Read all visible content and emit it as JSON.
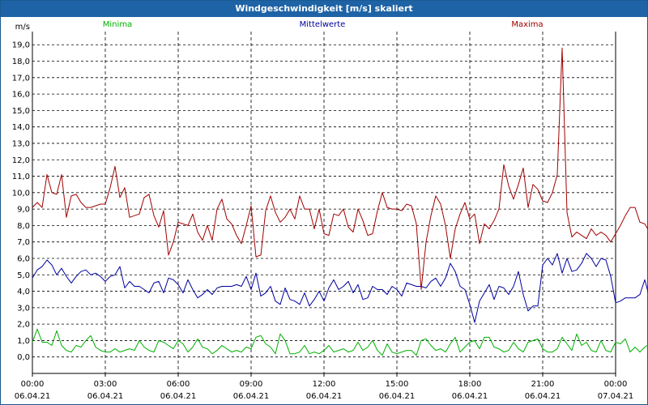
{
  "window": {
    "title": "Windgeschwindigkeit [m/s] skaliert"
  },
  "colors": {
    "titlebar": "#1e63a6",
    "min": "#00b000",
    "mean": "#0000a0",
    "max": "#a00000",
    "grid": "#000000"
  },
  "chart_data": {
    "type": "line",
    "title": "Windgeschwindigkeit [m/s] skaliert",
    "ylabel": "m/s",
    "xlabel": "",
    "ylim": [
      -1.0,
      19.8
    ],
    "yticks": [
      0.0,
      1.0,
      2.0,
      3.0,
      4.0,
      5.0,
      6.0,
      7.0,
      8.0,
      9.0,
      10.0,
      11.0,
      12.0,
      13.0,
      14.0,
      15.0,
      16.0,
      17.0,
      18.0,
      19.0
    ],
    "ytick_labels": [
      "0,0",
      "1,0",
      "2,0",
      "3,0",
      "4,0",
      "5,0",
      "6,0",
      "7,0",
      "8,0",
      "9,0",
      "10,0",
      "11,0",
      "12,0",
      "13,0",
      "14,0",
      "15,0",
      "16,0",
      "17,0",
      "18,0",
      "19,0"
    ],
    "xlim_hours": [
      0,
      24
    ],
    "xticks_hours": [
      0,
      3,
      6,
      9,
      12,
      15,
      18,
      21,
      24
    ],
    "xtick_labels": [
      [
        "00:00",
        "06.04.21"
      ],
      [
        "03:00",
        "06.04.21"
      ],
      [
        "06:00",
        "06.04.21"
      ],
      [
        "09:00",
        "06.04.21"
      ],
      [
        "12:00",
        "06.04.21"
      ],
      [
        "15:00",
        "06.04.21"
      ],
      [
        "18:00",
        "06.04.21"
      ],
      [
        "21:00",
        "06.04.21"
      ],
      [
        "00:00",
        "07.04.21"
      ]
    ],
    "grid": true,
    "legend_position": "top",
    "x_step_hours": 0.2,
    "series": [
      {
        "name": "Minima",
        "color": "#00b000",
        "values": [
          0.9,
          1.7,
          0.9,
          0.9,
          0.7,
          1.6,
          0.7,
          0.4,
          0.3,
          0.7,
          0.6,
          1.0,
          1.3,
          0.6,
          0.4,
          0.3,
          0.3,
          0.5,
          0.3,
          0.4,
          0.5,
          0.4,
          1.0,
          0.6,
          0.4,
          0.3,
          1.0,
          0.9,
          0.7,
          0.5,
          1.0,
          0.8,
          0.3,
          0.6,
          1.1,
          0.6,
          0.5,
          0.2,
          0.4,
          0.7,
          0.5,
          0.3,
          0.4,
          0.3,
          0.6,
          0.5,
          1.2,
          1.3,
          0.8,
          0.6,
          0.2,
          1.4,
          1.0,
          0.2,
          0.2,
          0.3,
          0.7,
          0.2,
          0.3,
          0.2,
          0.4,
          0.7,
          0.3,
          0.4,
          0.5,
          0.3,
          0.4,
          0.9,
          0.4,
          0.6,
          1.0,
          0.4,
          0.1,
          0.8,
          0.3,
          0.2,
          0.3,
          0.4,
          0.4,
          0.1,
          1.0,
          1.1,
          0.7,
          0.4,
          0.5,
          0.3,
          0.8,
          1.2,
          0.3,
          0.6,
          0.9,
          1.0,
          0.5,
          1.2,
          1.2,
          0.6,
          0.5,
          0.3,
          0.4,
          0.9,
          0.5,
          0.3,
          0.9,
          1.0,
          1.1,
          0.5,
          0.3,
          0.3,
          0.5,
          1.2,
          0.8,
          0.4,
          1.4,
          0.7,
          0.9,
          0.4,
          0.3,
          1.0,
          0.4,
          0.3,
          0.9,
          0.8,
          1.1,
          0.3,
          0.6,
          0.3,
          0.6,
          0.8,
          0.4,
          0.3,
          0.2,
          0.6,
          0.5,
          0.3,
          0.6,
          0.5,
          0.3,
          1.0,
          0.8,
          0.4,
          0.5,
          0.2,
          0.5,
          0.2,
          0.4,
          0.4,
          0.3,
          0.5,
          0.4,
          0.3,
          1.0,
          1.5,
          0.6,
          0.2,
          0.7,
          1.4,
          0.8,
          0.3,
          0.4,
          1.2,
          1.0,
          1.0,
          0.5,
          0.6,
          0.4,
          1.0,
          0.9,
          0.6,
          1.2,
          1.3,
          0.8,
          0.4,
          0.2,
          0.3,
          0.8,
          0.8,
          1.0,
          0.5,
          0.5
        ]
      },
      {
        "name": "Mittelwerte",
        "color": "#0000a0",
        "values": [
          4.8,
          5.3,
          5.5,
          5.9,
          5.6,
          5.0,
          5.4,
          4.9,
          4.5,
          4.9,
          5.2,
          5.3,
          5.0,
          5.1,
          4.9,
          4.6,
          4.9,
          5.0,
          5.5,
          4.2,
          4.6,
          4.3,
          4.3,
          4.1,
          3.9,
          4.5,
          4.6,
          3.9,
          4.8,
          4.7,
          4.4,
          3.9,
          4.7,
          4.1,
          3.6,
          3.8,
          4.1,
          3.8,
          4.2,
          4.3,
          4.3,
          4.3,
          4.4,
          4.3,
          4.9,
          4.1,
          5.1,
          3.7,
          3.9,
          4.3,
          3.4,
          3.2,
          4.2,
          3.5,
          3.4,
          3.2,
          3.9,
          3.1,
          3.5,
          4.0,
          3.4,
          4.2,
          4.7,
          4.1,
          4.3,
          4.6,
          3.9,
          4.4,
          3.5,
          3.6,
          4.3,
          4.1,
          4.1,
          3.8,
          4.3,
          4.1,
          3.7,
          4.5,
          4.4,
          4.3,
          4.3,
          4.2,
          4.6,
          4.8,
          4.3,
          4.8,
          5.7,
          5.2,
          4.3,
          4.1,
          3.2,
          2.1,
          3.4,
          3.9,
          4.4,
          3.5,
          4.3,
          4.2,
          3.8,
          4.3,
          5.2,
          3.8,
          2.8,
          3.1,
          3.1,
          5.6,
          6.0,
          5.6,
          6.3,
          5.1,
          6.0,
          5.2,
          5.3,
          5.7,
          6.3,
          6.0,
          5.5,
          6.0,
          5.9,
          4.9,
          3.3,
          3.4,
          3.6,
          3.6,
          3.6,
          3.8,
          4.7,
          3.6,
          4.8,
          4.8,
          3.9,
          3.9,
          4.3,
          3.9,
          3.4,
          3.6,
          3.4,
          3.6,
          4.0,
          2.9,
          2.9,
          2.9,
          3.7,
          3.8,
          3.7,
          3.6,
          4.1,
          4.6,
          4.1,
          3.8,
          4.6,
          3.8,
          3.3,
          3.6,
          3.6,
          3.2,
          3.8,
          3.8,
          4.3,
          4.7,
          4.8,
          4.3,
          3.6,
          3.8,
          3.8,
          3.3,
          3.5,
          3.5,
          3.4,
          3.2,
          3.1,
          3.5,
          3.4,
          3.1,
          3.7,
          4.0,
          3.7,
          3.1,
          3.6,
          3.5,
          3.4,
          3.5,
          4.1
        ]
      },
      {
        "name": "Maxima",
        "color": "#a00000",
        "values": [
          9.1,
          9.4,
          9.1,
          11.1,
          10.0,
          9.9,
          11.1,
          8.5,
          9.8,
          9.9,
          9.4,
          9.1,
          9.1,
          9.2,
          9.3,
          9.3,
          10.3,
          11.6,
          9.7,
          10.3,
          8.5,
          8.6,
          8.7,
          9.7,
          9.9,
          8.6,
          7.9,
          8.9,
          6.2,
          7.0,
          8.2,
          8.1,
          8.0,
          8.7,
          7.6,
          7.1,
          8.0,
          7.1,
          9.0,
          9.6,
          8.4,
          8.1,
          7.4,
          6.9,
          8.0,
          9.2,
          6.1,
          6.2,
          8.9,
          9.8,
          8.8,
          8.2,
          8.5,
          9.0,
          8.4,
          9.8,
          9.0,
          9.0,
          7.8,
          9.0,
          7.5,
          7.4,
          8.7,
          8.6,
          9.0,
          7.9,
          7.6,
          9.0,
          8.3,
          7.4,
          7.5,
          8.9,
          10.0,
          9.1,
          9.0,
          9.0,
          8.9,
          9.3,
          9.2,
          8.1,
          4.1,
          7.0,
          8.6,
          9.8,
          9.3,
          8.0,
          6.0,
          7.8,
          8.7,
          9.4,
          8.4,
          8.7,
          6.9,
          8.1,
          7.8,
          8.3,
          9.0,
          11.7,
          10.4,
          9.6,
          10.5,
          11.5,
          9.1,
          10.5,
          10.2,
          9.5,
          9.4,
          10.0,
          11.1,
          18.8,
          8.8,
          7.3,
          7.6,
          7.4,
          7.2,
          7.8,
          7.4,
          7.6,
          7.4,
          7.0,
          7.5,
          8.0,
          8.6,
          9.1,
          9.1,
          8.2,
          8.1,
          7.6,
          7.9,
          7.2,
          7.5,
          7.3,
          6.8,
          8.1,
          8.8,
          7.4,
          6.7,
          8.5,
          8.1,
          6.6,
          6.3,
          6.5,
          6.4,
          6.8,
          7.2,
          8.5,
          8.3,
          7.6,
          8.1,
          5.9,
          8.4,
          7.4,
          9.1,
          8.6,
          9.1,
          9.1,
          8.9,
          7.1,
          7.4,
          7.5,
          8.1,
          9.3,
          7.6,
          6.7,
          6.7,
          8.0,
          6.9,
          7.9,
          7.2,
          8.1,
          6.4,
          6.2,
          6.1,
          6.2,
          6.4,
          6.8,
          6.3,
          6.2,
          7.5,
          7.5,
          6.4,
          6.9,
          6.8
        ]
      }
    ]
  }
}
